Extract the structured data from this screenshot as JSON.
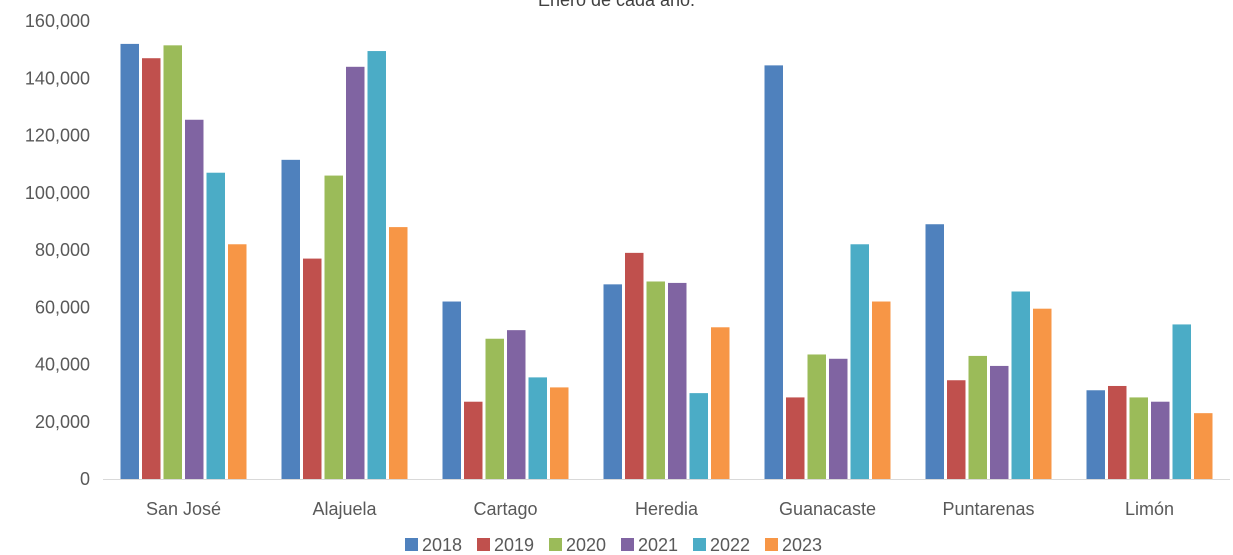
{
  "chart_data": {
    "type": "bar",
    "title": "Enero de cada año.",
    "categories": [
      "San José",
      "Alajuela",
      "Cartago",
      "Heredia",
      "Guanacaste",
      "Puntarenas",
      "Limón"
    ],
    "series": [
      {
        "name": "2018",
        "color": "#4F81BD",
        "values": [
          152000,
          111500,
          62000,
          68000,
          144500,
          89000,
          31000
        ]
      },
      {
        "name": "2019",
        "color": "#C0504D",
        "values": [
          147000,
          77000,
          27000,
          79000,
          28500,
          34500,
          32500
        ]
      },
      {
        "name": "2020",
        "color": "#9BBB59",
        "values": [
          151500,
          106000,
          49000,
          69000,
          43500,
          43000,
          28500
        ]
      },
      {
        "name": "2021",
        "color": "#8064A2",
        "values": [
          125500,
          144000,
          52000,
          68500,
          42000,
          39500,
          27000
        ]
      },
      {
        "name": "2022",
        "color": "#4BACC6",
        "values": [
          107000,
          149500,
          35500,
          30000,
          82000,
          65500,
          54000
        ]
      },
      {
        "name": "2023",
        "color": "#F79646",
        "values": [
          82000,
          88000,
          32000,
          53000,
          62000,
          59500,
          23000
        ]
      }
    ],
    "ylim": [
      0,
      160000
    ],
    "yticks": [
      "0",
      "20,000",
      "40,000",
      "60,000",
      "80,000",
      "100,000",
      "120,000",
      "140,000",
      "160,000"
    ],
    "ytick_values": [
      0,
      20000,
      40000,
      60000,
      80000,
      100000,
      120000,
      140000,
      160000
    ],
    "grid": false,
    "legend": "bottom"
  }
}
